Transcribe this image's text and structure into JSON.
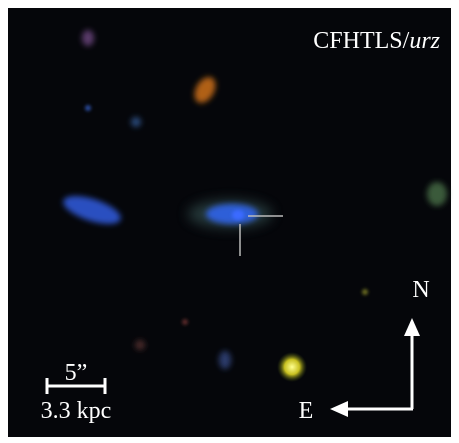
{
  "image": {
    "label": {
      "survey": "CFHTLS/",
      "bands": "urz"
    },
    "compass": {
      "north": "N",
      "east": "E"
    },
    "scale_bar": {
      "angle": "5”",
      "distance": "3.3 kpc"
    }
  }
}
